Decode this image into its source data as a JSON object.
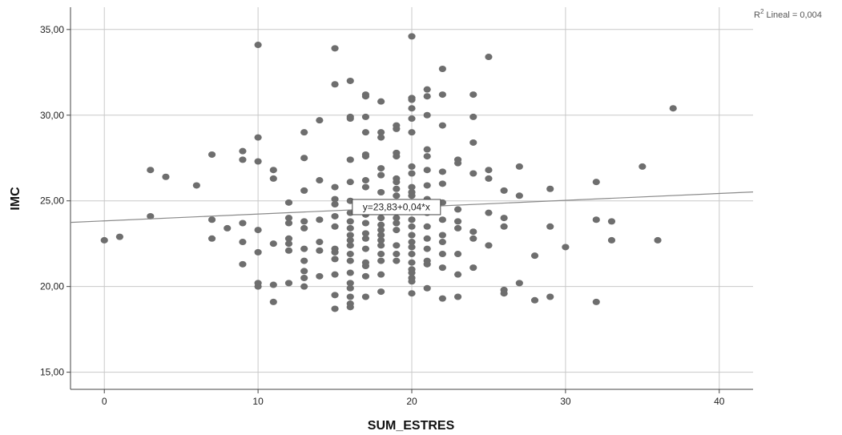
{
  "chart_data": {
    "type": "scatter",
    "xlabel": "SUM_ESTRES",
    "ylabel": "IMC",
    "xlim": [
      -2.2,
      42.2
    ],
    "ylim": [
      14,
      36.3
    ],
    "xticks": [
      0,
      10,
      20,
      30,
      40
    ],
    "yticks": [
      15,
      20,
      25,
      30,
      35
    ],
    "x_tick_labels": [
      "0",
      "10",
      "20",
      "30",
      "40"
    ],
    "y_tick_labels": [
      "15,00",
      "20,00",
      "25,00",
      "30,00",
      "35,00"
    ],
    "grid": true,
    "point_color": "#6e6e6e",
    "line_color": "#8a8a8a",
    "fit_line": {
      "intercept": 23.83,
      "slope": 0.04,
      "label": "y=23,83+0,04*x"
    },
    "r2": {
      "prefix": "R",
      "sup": "2",
      "suffix": " Lineal = 0,004"
    },
    "points": [
      [
        0,
        22.7
      ],
      [
        1,
        22.9
      ],
      [
        3,
        26.8
      ],
      [
        3,
        24.1
      ],
      [
        4,
        26.4
      ],
      [
        6,
        25.9
      ],
      [
        7,
        27.7
      ],
      [
        7,
        23.9
      ],
      [
        7,
        22.8
      ],
      [
        8,
        23.4
      ],
      [
        9,
        27.9
      ],
      [
        9,
        27.4
      ],
      [
        9,
        23.7
      ],
      [
        9,
        22.6
      ],
      [
        9,
        21.3
      ],
      [
        10,
        34.1
      ],
      [
        10,
        28.7
      ],
      [
        10,
        27.3
      ],
      [
        10,
        23.3
      ],
      [
        10,
        22.0
      ],
      [
        10,
        20.2
      ],
      [
        10,
        20.0
      ],
      [
        11,
        26.8
      ],
      [
        11,
        26.3
      ],
      [
        11,
        22.5
      ],
      [
        11,
        20.1
      ],
      [
        11,
        19.1
      ],
      [
        12,
        24.9
      ],
      [
        12,
        24.0
      ],
      [
        12,
        23.7
      ],
      [
        12,
        22.8
      ],
      [
        12,
        22.5
      ],
      [
        12,
        22.1
      ],
      [
        12,
        20.2
      ],
      [
        13,
        29.0
      ],
      [
        13,
        27.5
      ],
      [
        13,
        25.6
      ],
      [
        13,
        23.8
      ],
      [
        13,
        23.4
      ],
      [
        13,
        22.2
      ],
      [
        13,
        21.5
      ],
      [
        13,
        20.9
      ],
      [
        13,
        20.5
      ],
      [
        13,
        20.0
      ],
      [
        14,
        29.7
      ],
      [
        14,
        26.2
      ],
      [
        14,
        23.9
      ],
      [
        14,
        22.6
      ],
      [
        14,
        22.1
      ],
      [
        14,
        20.6
      ],
      [
        15,
        33.9
      ],
      [
        15,
        31.8
      ],
      [
        15,
        25.8
      ],
      [
        15,
        25.1
      ],
      [
        15,
        24.8
      ],
      [
        15,
        24.1
      ],
      [
        15,
        23.5
      ],
      [
        15,
        22.2
      ],
      [
        15,
        22.0
      ],
      [
        15,
        21.6
      ],
      [
        15,
        20.7
      ],
      [
        15,
        19.5
      ],
      [
        15,
        18.7
      ],
      [
        16,
        32.0
      ],
      [
        16,
        29.9
      ],
      [
        16,
        29.8
      ],
      [
        16,
        27.4
      ],
      [
        16,
        26.1
      ],
      [
        16,
        25.0
      ],
      [
        16,
        24.3
      ],
      [
        16,
        23.8
      ],
      [
        16,
        23.4
      ],
      [
        16,
        23.0
      ],
      [
        16,
        22.7
      ],
      [
        16,
        22.4
      ],
      [
        16,
        21.9
      ],
      [
        16,
        21.5
      ],
      [
        16,
        20.8
      ],
      [
        16,
        20.2
      ],
      [
        16,
        19.9
      ],
      [
        16,
        19.4
      ],
      [
        16,
        19.0
      ],
      [
        16,
        18.8
      ],
      [
        17,
        31.2
      ],
      [
        17,
        31.1
      ],
      [
        17,
        29.9
      ],
      [
        17,
        29.0
      ],
      [
        17,
        27.7
      ],
      [
        17,
        27.6
      ],
      [
        17,
        26.2
      ],
      [
        17,
        25.8
      ],
      [
        17,
        24.2
      ],
      [
        17,
        23.7
      ],
      [
        17,
        23.1
      ],
      [
        17,
        22.8
      ],
      [
        17,
        22.2
      ],
      [
        17,
        21.4
      ],
      [
        17,
        21.2
      ],
      [
        17,
        20.6
      ],
      [
        17,
        19.4
      ],
      [
        18,
        30.8
      ],
      [
        18,
        29.0
      ],
      [
        18,
        28.7
      ],
      [
        18,
        26.9
      ],
      [
        18,
        26.5
      ],
      [
        18,
        25.5
      ],
      [
        18,
        24.5
      ],
      [
        18,
        24.0
      ],
      [
        18,
        23.6
      ],
      [
        18,
        23.3
      ],
      [
        18,
        23.0
      ],
      [
        18,
        22.7
      ],
      [
        18,
        22.4
      ],
      [
        18,
        21.9
      ],
      [
        18,
        21.5
      ],
      [
        18,
        20.7
      ],
      [
        18,
        19.7
      ],
      [
        19,
        29.4
      ],
      [
        19,
        29.2
      ],
      [
        19,
        27.8
      ],
      [
        19,
        27.6
      ],
      [
        19,
        26.3
      ],
      [
        19,
        26.1
      ],
      [
        19,
        25.7
      ],
      [
        19,
        25.3
      ],
      [
        19,
        24.8
      ],
      [
        19,
        24.0
      ],
      [
        19,
        23.7
      ],
      [
        19,
        23.3
      ],
      [
        19,
        22.4
      ],
      [
        19,
        21.9
      ],
      [
        19,
        21.5
      ],
      [
        20,
        34.6
      ],
      [
        20,
        31.0
      ],
      [
        20,
        30.9
      ],
      [
        20,
        30.4
      ],
      [
        20,
        29.8
      ],
      [
        20,
        29.0
      ],
      [
        20,
        27.0
      ],
      [
        20,
        26.6
      ],
      [
        20,
        25.8
      ],
      [
        20,
        25.5
      ],
      [
        20,
        25.3
      ],
      [
        20,
        24.9
      ],
      [
        20,
        24.6
      ],
      [
        20,
        23.9
      ],
      [
        20,
        23.5
      ],
      [
        20,
        23.0
      ],
      [
        20,
        22.6
      ],
      [
        20,
        22.3
      ],
      [
        20,
        21.9
      ],
      [
        20,
        21.4
      ],
      [
        20,
        21.0
      ],
      [
        20,
        20.8
      ],
      [
        20,
        20.5
      ],
      [
        20,
        20.3
      ],
      [
        20,
        19.6
      ],
      [
        21,
        31.5
      ],
      [
        21,
        31.1
      ],
      [
        21,
        30.0
      ],
      [
        21,
        28.0
      ],
      [
        21,
        27.6
      ],
      [
        21,
        26.8
      ],
      [
        21,
        25.9
      ],
      [
        21,
        25.1
      ],
      [
        21,
        24.3
      ],
      [
        21,
        23.5
      ],
      [
        21,
        22.8
      ],
      [
        21,
        22.2
      ],
      [
        21,
        21.5
      ],
      [
        21,
        21.3
      ],
      [
        21,
        19.9
      ],
      [
        22,
        32.7
      ],
      [
        22,
        31.2
      ],
      [
        22,
        29.4
      ],
      [
        22,
        26.7
      ],
      [
        22,
        26.0
      ],
      [
        22,
        24.9
      ],
      [
        22,
        23.9
      ],
      [
        22,
        23.0
      ],
      [
        22,
        22.6
      ],
      [
        22,
        21.9
      ],
      [
        22,
        21.1
      ],
      [
        22,
        19.3
      ],
      [
        23,
        27.4
      ],
      [
        23,
        27.2
      ],
      [
        23,
        24.5
      ],
      [
        23,
        23.8
      ],
      [
        23,
        23.4
      ],
      [
        23,
        21.9
      ],
      [
        23,
        20.7
      ],
      [
        23,
        19.4
      ],
      [
        24,
        31.2
      ],
      [
        24,
        29.9
      ],
      [
        24,
        28.4
      ],
      [
        24,
        26.6
      ],
      [
        24,
        23.2
      ],
      [
        24,
        22.8
      ],
      [
        24,
        21.1
      ],
      [
        25,
        33.4
      ],
      [
        25,
        26.8
      ],
      [
        25,
        26.3
      ],
      [
        25,
        24.3
      ],
      [
        25,
        22.4
      ],
      [
        26,
        25.6
      ],
      [
        26,
        24.0
      ],
      [
        26,
        23.5
      ],
      [
        26,
        19.8
      ],
      [
        26,
        19.6
      ],
      [
        27,
        27.0
      ],
      [
        27,
        25.3
      ],
      [
        27,
        20.2
      ],
      [
        28,
        21.8
      ],
      [
        28,
        19.2
      ],
      [
        29,
        25.7
      ],
      [
        29,
        23.5
      ],
      [
        29,
        19.4
      ],
      [
        30,
        22.3
      ],
      [
        32,
        26.1
      ],
      [
        32,
        23.9
      ],
      [
        32,
        19.1
      ],
      [
        33,
        23.8
      ],
      [
        33,
        22.7
      ],
      [
        35,
        27.0
      ],
      [
        36,
        22.7
      ],
      [
        37,
        30.4
      ]
    ]
  }
}
